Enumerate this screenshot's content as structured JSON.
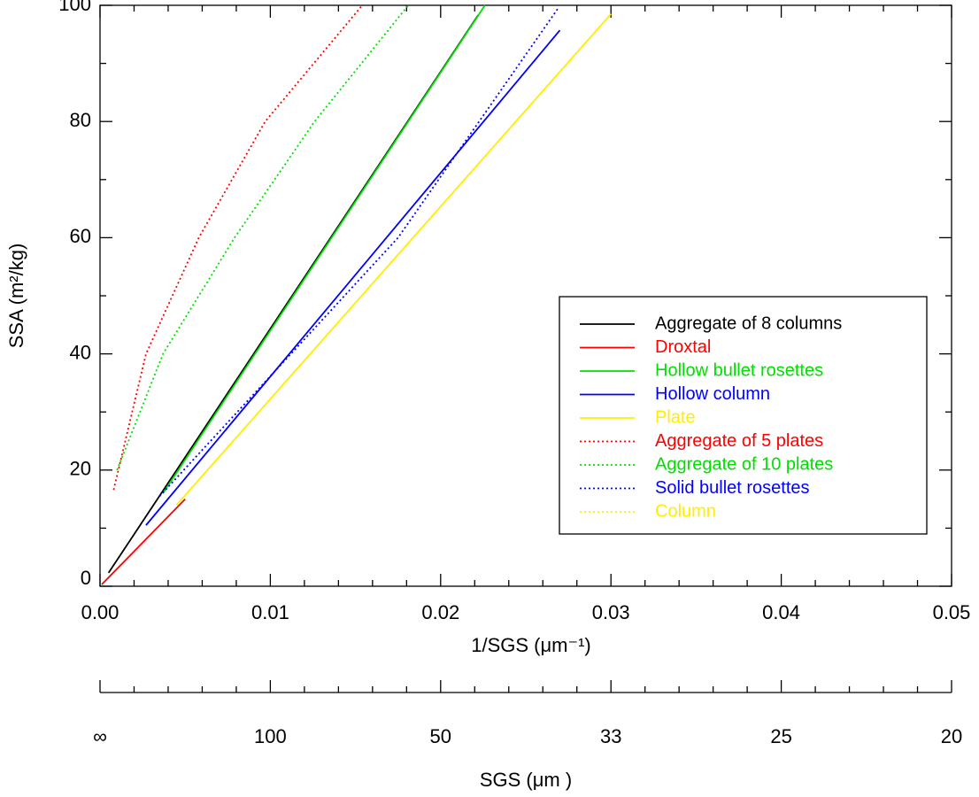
{
  "chart_data": {
    "type": "line",
    "xlabel": "1/SGS (μm⁻¹)",
    "ylabel": "SSA (m²/kg)",
    "xlim": [
      0,
      0.05
    ],
    "ylim": [
      0,
      100
    ],
    "xticks": [
      {
        "value": 0,
        "label": "0.00"
      },
      0.01,
      0.02,
      0.03,
      0.04,
      0.05
    ],
    "yticks": [
      0,
      20,
      40,
      60,
      80,
      100
    ],
    "x2label": "SGS (μm )",
    "x2ticks": [
      {
        "value": 0,
        "label": "∞"
      },
      {
        "value": 0.01,
        "label": "100"
      },
      {
        "value": 0.02,
        "label": "50"
      },
      {
        "value": 0.03,
        "label": "33"
      },
      {
        "value": 0.04,
        "label": "25"
      },
      {
        "value": 0.05,
        "label": "20"
      }
    ],
    "legend": "right",
    "series": [
      {
        "name": "Aggregate of 8 columns",
        "color": "#000000",
        "style": "solid",
        "x": [
          0.0005,
          0.0222
        ],
        "values": [
          2.3,
          98.3
        ]
      },
      {
        "name": "Droxtal",
        "color": "#ff0000",
        "style": "solid",
        "x": [
          0.0001,
          0.005
        ],
        "values": [
          0.3,
          15
        ]
      },
      {
        "name": "Hollow bullet rosettes",
        "color": "#00e000",
        "style": "solid",
        "x": [
          0.0037,
          0.0226
        ],
        "values": [
          16,
          100
        ]
      },
      {
        "name": "Hollow column",
        "color": "#0000ff",
        "style": "solid",
        "x": [
          0.0027,
          0.027
        ],
        "values": [
          10.5,
          95.7
        ]
      },
      {
        "name": "Plate",
        "color": "#ffee00",
        "style": "solid",
        "x": [
          0.0045,
          0.03
        ],
        "values": [
          14,
          98.5
        ]
      },
      {
        "name": "Aggregate of 5 plates",
        "color": "#ff0000",
        "style": "dotted",
        "x": [
          0.0008,
          0.0027,
          0.0058,
          0.0097,
          0.0154
        ],
        "values": [
          16.6,
          40,
          60,
          80,
          100
        ]
      },
      {
        "name": "Aggregate of 10 plates",
        "color": "#00e000",
        "style": "dotted",
        "x": [
          0.001,
          0.0037,
          0.0079,
          0.0126,
          0.0181
        ],
        "values": [
          20,
          40,
          60,
          80,
          100
        ]
      },
      {
        "name": "Solid bullet rosettes",
        "color": "#0000ff",
        "style": "dotted",
        "x": [
          0.0035,
          0.0175,
          0.0269
        ],
        "values": [
          15.5,
          60,
          99.5
        ]
      },
      {
        "name": "Column",
        "color": "#ffee00",
        "style": "dotted",
        "x": [
          0.0045,
          0.03
        ],
        "values": [
          14,
          98.5
        ]
      }
    ]
  }
}
